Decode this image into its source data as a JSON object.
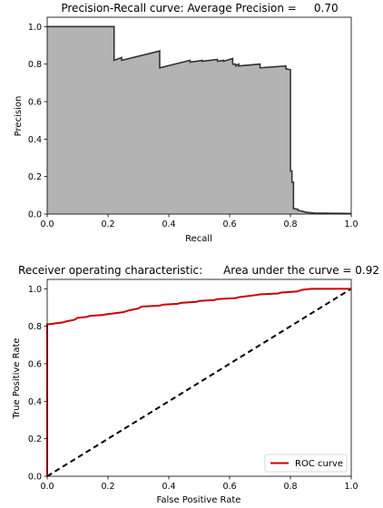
{
  "colors": {
    "pr_fill": "#b3b3b3",
    "pr_line": "#333333",
    "roc_line": "#cc0000",
    "diag_line": "#000000"
  },
  "chart_data": [
    {
      "type": "area",
      "title": "Precision-Recall curve: Average Precision =     0.70",
      "xlabel": "Recall",
      "ylabel": "Precision",
      "xlim": [
        0,
        1
      ],
      "ylim": [
        0,
        1.05
      ],
      "xticks": [
        "0.0",
        "0.2",
        "0.4",
        "0.6",
        "0.8",
        "1.0"
      ],
      "yticks": [
        "0.0",
        "0.2",
        "0.4",
        "0.6",
        "0.8",
        "1.0"
      ],
      "grid": false,
      "series": [
        {
          "recall": [
            0.0,
            0.22,
            0.22,
            0.245,
            0.245,
            0.37,
            0.37,
            0.47,
            0.47,
            0.51,
            0.51,
            0.56,
            0.56,
            0.58,
            0.58,
            0.61,
            0.61,
            0.62,
            0.62,
            0.63,
            0.63,
            0.7,
            0.7,
            0.785,
            0.785,
            0.8,
            0.8,
            0.805,
            0.805,
            0.81,
            0.81,
            0.825,
            0.825,
            0.84,
            0.85,
            0.88,
            1.0
          ],
          "precision": [
            1.0,
            1.0,
            0.82,
            0.835,
            0.82,
            0.87,
            0.78,
            0.82,
            0.81,
            0.82,
            0.815,
            0.825,
            0.815,
            0.82,
            0.815,
            0.83,
            0.8,
            0.8,
            0.79,
            0.8,
            0.79,
            0.8,
            0.78,
            0.79,
            0.775,
            0.77,
            0.23,
            0.23,
            0.17,
            0.17,
            0.03,
            0.025,
            0.02,
            0.015,
            0.01,
            0.005,
            0.003
          ]
        }
      ]
    },
    {
      "type": "line",
      "title": "Receiver operating characteristic:      Area under the curve = 0.92",
      "xlabel": "False Positive Rate",
      "ylabel": "True Positive Rate",
      "xlim": [
        0,
        1
      ],
      "ylim": [
        0,
        1.05
      ],
      "xticks": [
        "0.0",
        "0.2",
        "0.4",
        "0.6",
        "0.8",
        "1.0"
      ],
      "yticks": [
        "0.0",
        "0.2",
        "0.4",
        "0.6",
        "0.8",
        "1.0"
      ],
      "grid": false,
      "legend_position": "lower-right",
      "series": [
        {
          "name": "ROC curve",
          "fpr": [
            0.0,
            0.0,
            0.05,
            0.06,
            0.09,
            0.1,
            0.13,
            0.14,
            0.18,
            0.2,
            0.25,
            0.27,
            0.3,
            0.31,
            0.37,
            0.38,
            0.43,
            0.44,
            0.49,
            0.5,
            0.55,
            0.56,
            0.62,
            0.63,
            0.68,
            0.7,
            0.76,
            0.77,
            0.82,
            0.84,
            0.87,
            0.88,
            1.0
          ],
          "tpr": [
            0.0,
            0.81,
            0.82,
            0.825,
            0.835,
            0.845,
            0.85,
            0.855,
            0.86,
            0.865,
            0.875,
            0.885,
            0.895,
            0.905,
            0.91,
            0.915,
            0.92,
            0.925,
            0.93,
            0.935,
            0.94,
            0.945,
            0.95,
            0.955,
            0.965,
            0.97,
            0.975,
            0.98,
            0.985,
            0.995,
            1.0,
            1.0,
            1.0
          ]
        },
        {
          "fpr": [
            0,
            1
          ],
          "tpr": [
            0,
            1
          ]
        }
      ]
    }
  ]
}
